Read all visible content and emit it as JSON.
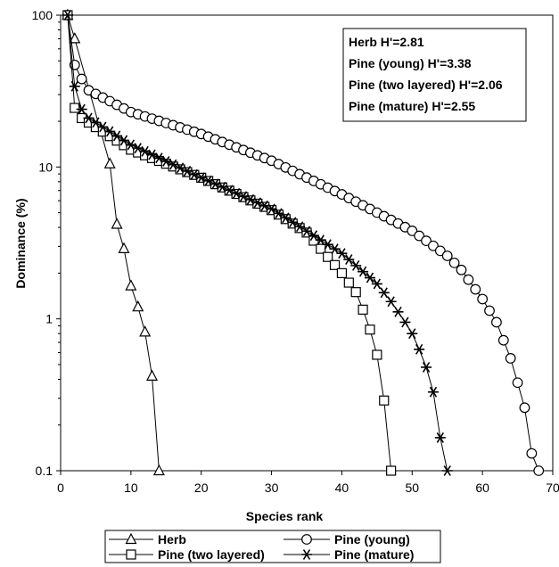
{
  "chart_data": {
    "type": "line",
    "x_scale": "linear",
    "y_scale": "log",
    "xlabel": "Species rank",
    "ylabel": "Dominance (%)",
    "xlim": [
      0,
      70
    ],
    "ylim": [
      0.1,
      100
    ],
    "x_ticks": [
      0,
      10,
      20,
      30,
      40,
      50,
      60,
      70
    ],
    "x_tick_labels": [
      "0",
      "10",
      "20",
      "30",
      "40",
      "50",
      "60",
      "70"
    ],
    "y_ticks": [
      0.1,
      1,
      10,
      100
    ],
    "y_tick_labels": [
      "0.1",
      "1",
      "10",
      "100"
    ],
    "grid": false,
    "legend_placement": "bottom",
    "info_box": {
      "placement": "top-right",
      "lines": [
        "Herb H'=2.81",
        "Pine (young) H'=3.38",
        "Pine (two layered) H'=2.06",
        "Pine (mature) H'=2.55"
      ]
    },
    "series": [
      {
        "name": "Herb",
        "marker": "triangle",
        "x": [
          1,
          2,
          7,
          8,
          9,
          10,
          11,
          12,
          13,
          14
        ],
        "y": [
          100,
          70,
          10.5,
          4.2,
          2.9,
          1.65,
          1.2,
          0.82,
          0.42,
          0.1
        ]
      },
      {
        "name": "Pine (young)",
        "marker": "circle",
        "x": [
          1,
          2,
          3,
          68
        ],
        "y": [
          100,
          47,
          38,
          0.1
        ],
        "anchors": [
          [
            4,
            32
          ],
          [
            10,
            23
          ],
          [
            20,
            16.5
          ],
          [
            30,
            11
          ],
          [
            40,
            6.6
          ],
          [
            50,
            3.8
          ],
          [
            55,
            2.6
          ],
          [
            57,
            2.1
          ],
          [
            60,
            1.35
          ],
          [
            62,
            0.95
          ],
          [
            64,
            0.55
          ],
          [
            65,
            0.38
          ],
          [
            66,
            0.26
          ],
          [
            67,
            0.13
          ]
        ]
      },
      {
        "name": "Pine (two layered)",
        "marker": "square",
        "x": [
          1,
          2,
          47
        ],
        "y": [
          100,
          24.5,
          0.1
        ],
        "anchors": [
          [
            3,
            21
          ],
          [
            10,
            13
          ],
          [
            20,
            8.5
          ],
          [
            30,
            5.2
          ],
          [
            35,
            3.7
          ],
          [
            40,
            2.0
          ],
          [
            42,
            1.5
          ],
          [
            43,
            1.15
          ],
          [
            44,
            0.85
          ],
          [
            45,
            0.58
          ],
          [
            46,
            0.29
          ]
        ]
      },
      {
        "name": "Pine (mature)",
        "marker": "asterisk",
        "x": [
          1,
          2,
          3,
          55
        ],
        "y": [
          100,
          34,
          24,
          0.1
        ],
        "anchors": [
          [
            4,
            21
          ],
          [
            10,
            14
          ],
          [
            20,
            8.5
          ],
          [
            30,
            5.3
          ],
          [
            40,
            2.7
          ],
          [
            45,
            1.7
          ],
          [
            47,
            1.3
          ],
          [
            49,
            0.95
          ],
          [
            50,
            0.8
          ],
          [
            51,
            0.63
          ],
          [
            52,
            0.48
          ],
          [
            53,
            0.33
          ],
          [
            54,
            0.165
          ]
        ]
      }
    ]
  }
}
